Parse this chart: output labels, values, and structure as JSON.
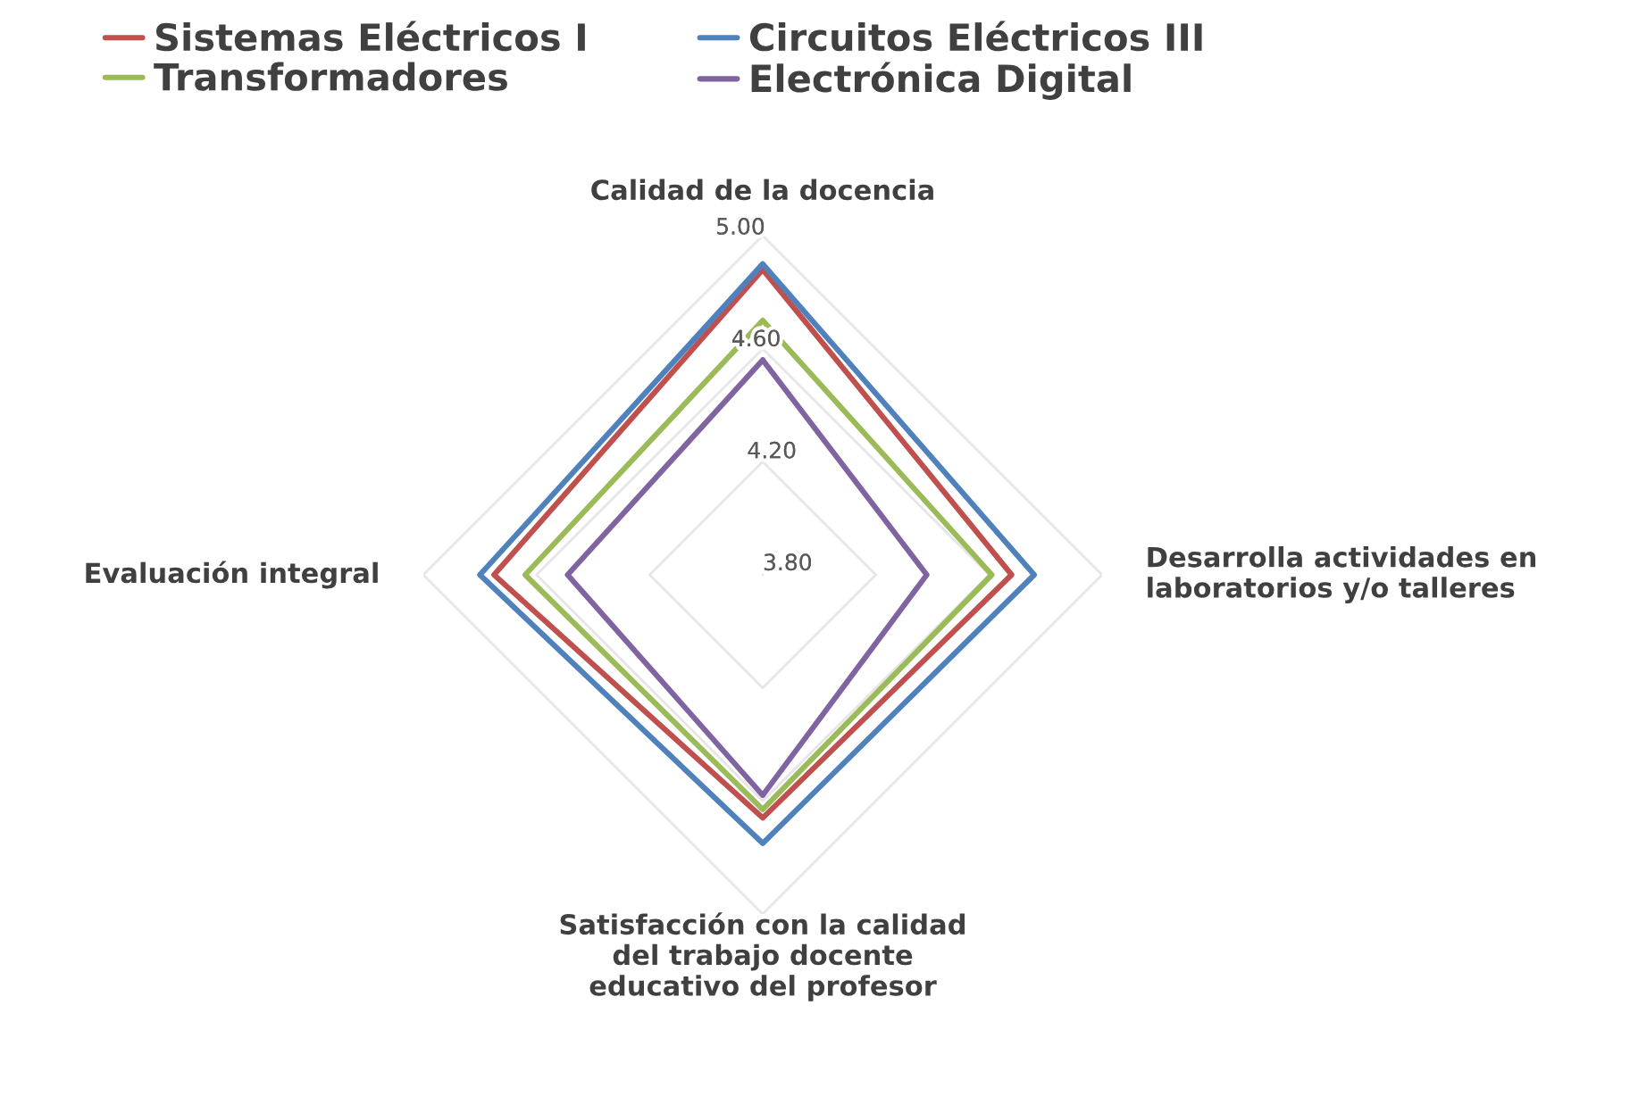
{
  "chart_data": {
    "type": "radar",
    "categories": [
      "Calidad de la docencia",
      "Desarrolla actividades en\nlaboratorios y/o talleres",
      "Satisfacción con la calidad\ndel trabajo docente\neducativo del profesor",
      "Evaluación integral"
    ],
    "series": [
      {
        "name": "Sistemas Eléctricos I",
        "color": "#c0504d",
        "values": [
          4.88,
          4.68,
          4.66,
          4.75
        ]
      },
      {
        "name": "Circuitos Eléctricos III",
        "color": "#4f81bd",
        "values": [
          4.9,
          4.76,
          4.75,
          4.8
        ]
      },
      {
        "name": "Transformadores",
        "color": "#9bbb59",
        "values": [
          4.7,
          4.61,
          4.63,
          4.64
        ]
      },
      {
        "name": "Electrónica Digital",
        "color": "#8064a2",
        "values": [
          4.56,
          4.38,
          4.58,
          4.49
        ]
      }
    ],
    "ylim": [
      3.8,
      5.0
    ],
    "yticks": [
      {
        "value": 3.8,
        "label": "3.80"
      },
      {
        "value": 4.2,
        "label": "4.20"
      },
      {
        "value": 4.6,
        "label": "4.60"
      },
      {
        "value": 5.0,
        "label": "5.00"
      }
    ],
    "grid": true,
    "legend": "top"
  }
}
